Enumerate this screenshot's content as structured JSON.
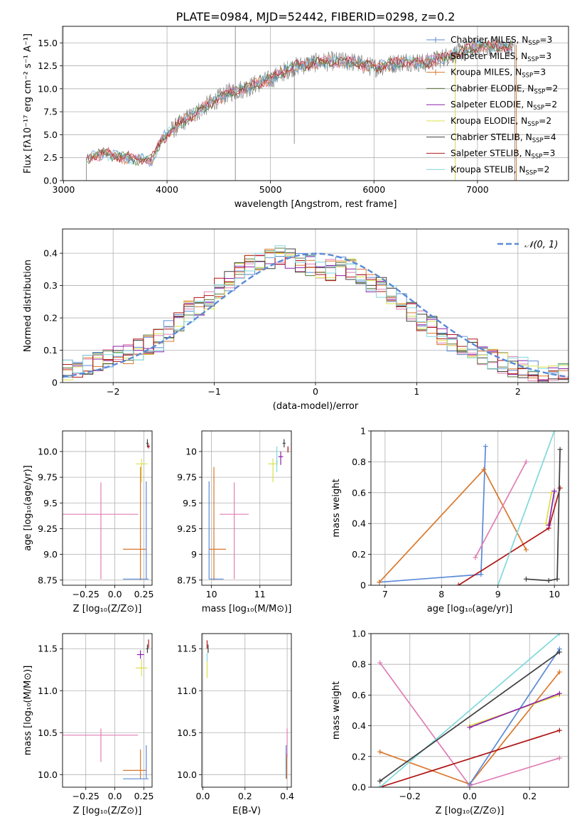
{
  "figure_title": "PLATE=0984, MJD=52442, FIBERID=0298, z=0.2",
  "colors": {
    "cm": "#5b8ad6",
    "sm": "#e07eb4",
    "km": "#d9782d",
    "ce": "#5d7a3d",
    "se": "#8c1fa8",
    "ke": "#dbe04a",
    "cs": "#3f3f3f",
    "ss": "#b01515",
    "ks": "#80d8dc",
    "grid": "#b0b0b0",
    "dash": "#5b8ad6"
  },
  "legend_order": [
    "cm",
    "sm",
    "km",
    "ce",
    "se",
    "ke",
    "cs",
    "ss",
    "ks"
  ],
  "chart_data": [
    {
      "id": "spectrum",
      "type": "line",
      "xlabel": "wavelength [Angstrom, rest frame]",
      "ylabel": "Flux [fλ10⁻¹⁷ erg cm⁻² s⁻¹ A⁻¹]",
      "xlim": [
        2990,
        7880
      ],
      "ylim": [
        0,
        16.8
      ],
      "xticks": [
        3000,
        4000,
        5000,
        6000,
        7000
      ],
      "yticks": [
        0.0,
        2.5,
        5.0,
        7.5,
        10.0,
        12.5,
        15.0
      ],
      "continuum": [
        [
          3220,
          2.4
        ],
        [
          3400,
          3.0
        ],
        [
          3500,
          2.7
        ],
        [
          3700,
          2.3
        ],
        [
          3850,
          2.2
        ],
        [
          3950,
          4.5
        ],
        [
          4050,
          5.5
        ],
        [
          4200,
          6.8
        ],
        [
          4400,
          8.3
        ],
        [
          4600,
          9.6
        ],
        [
          4800,
          10.2
        ],
        [
          4900,
          10.7
        ],
        [
          5000,
          11.0
        ],
        [
          5200,
          12.3
        ],
        [
          5400,
          12.8
        ],
        [
          5600,
          13.0
        ],
        [
          5800,
          12.9
        ],
        [
          6000,
          12.3
        ],
        [
          6300,
          13.0
        ],
        [
          6500,
          12.8
        ],
        [
          6700,
          13.5
        ],
        [
          7000,
          14.6
        ],
        [
          7200,
          14.6
        ],
        [
          7350,
          14.4
        ]
      ],
      "legend": [
        {
          "key": "cm",
          "label": "Chabrier MILES, N_SSP=3",
          "marker": true
        },
        {
          "key": "sm",
          "label": "Salpeter MILES, N_SSP=3",
          "marker": true
        },
        {
          "key": "km",
          "label": "Kroupa MILES, N_SSP=3",
          "marker": true
        },
        {
          "key": "ce",
          "label": "Chabrier ELODIE, N_SSP=2",
          "marker": false
        },
        {
          "key": "se",
          "label": "Salpeter ELODIE, N_SSP=2",
          "marker": false
        },
        {
          "key": "ke",
          "label": "Kroupa ELODIE, N_SSP=2",
          "marker": false
        },
        {
          "key": "cs",
          "label": "Chabrier STELIB, N_SSP=4",
          "marker": false
        },
        {
          "key": "ss",
          "label": "Salpeter STELIB, N_SSP=3",
          "marker": false
        },
        {
          "key": "ks",
          "label": "Kroupa STELIB, N_SSP=2",
          "marker": false
        }
      ]
    },
    {
      "id": "histogram",
      "type": "histogram",
      "xlabel": "(data-model)/error",
      "ylabel": "Normed distribution",
      "xlim": [
        -2.5,
        2.5
      ],
      "ylim": [
        0,
        0.475
      ],
      "xticks": [
        -2,
        -1,
        0,
        1,
        2
      ],
      "yticks": [
        0.0,
        0.1,
        0.2,
        0.3,
        0.4
      ],
      "bins": 50,
      "base_values": [
        0.04,
        0.05,
        0.05,
        0.06,
        0.07,
        0.08,
        0.09,
        0.1,
        0.12,
        0.13,
        0.16,
        0.19,
        0.22,
        0.24,
        0.26,
        0.29,
        0.31,
        0.34,
        0.36,
        0.37,
        0.38,
        0.39,
        0.38,
        0.37,
        0.36,
        0.35,
        0.35,
        0.36,
        0.35,
        0.33,
        0.31,
        0.29,
        0.27,
        0.25,
        0.22,
        0.19,
        0.17,
        0.15,
        0.13,
        0.11,
        0.1,
        0.08,
        0.07,
        0.06,
        0.05,
        0.05,
        0.04,
        0.03,
        0.03,
        0.03
      ],
      "legend_label": "𝒩(0, 1)"
    },
    {
      "id": "age_vs_Z",
      "type": "errorbar",
      "xlabel": "Z [log₁₀(Z/Z⊙)]",
      "ylabel": "age  [log₁₀(age/yr)]",
      "xlim": [
        -0.45,
        0.32
      ],
      "ylim": [
        8.7,
        10.2
      ],
      "xticks": [
        -0.25,
        0.0,
        0.25
      ],
      "yticks": [
        8.75,
        9.0,
        9.25,
        9.5,
        9.75,
        10.0
      ],
      "points": [
        {
          "key": "sm",
          "x": -0.12,
          "y": 9.39,
          "xerr": [
            0.33,
            0.32
          ],
          "yerr": [
            0.63,
            0.31
          ]
        },
        {
          "key": "km",
          "x": 0.22,
          "y": 9.05,
          "xerr": [
            0.15,
            0.05
          ],
          "yerr": [
            0.3,
            0.8
          ]
        },
        {
          "key": "cm",
          "x": 0.27,
          "y": 8.76,
          "xerr": [
            0.2,
            0.02
          ],
          "yerr": [
            0.0,
            0.95
          ]
        },
        {
          "key": "ke",
          "x": 0.23,
          "y": 9.88,
          "xerr": [
            0.05,
            0.05
          ],
          "yerr": [
            0.18,
            0.05
          ]
        },
        {
          "key": "cs",
          "x": 0.28,
          "y": 10.08,
          "xerr": [
            0.01,
            0.01
          ],
          "yerr": [
            0.04,
            0.04
          ]
        },
        {
          "key": "ss",
          "x": 0.29,
          "y": 10.05,
          "xerr": [
            0.01,
            0.01
          ],
          "yerr": [
            0.02,
            0.02
          ]
        }
      ]
    },
    {
      "id": "age_vs_mass",
      "type": "errorbar",
      "xlabel": "mass [log₁₀(M/M⊙)]",
      "ylabel": "",
      "xlim": [
        9.8,
        11.65
      ],
      "ylim": [
        8.7,
        10.2
      ],
      "xticks": [
        10,
        11
      ],
      "yticks": [
        8.75,
        9.0,
        9.25,
        9.5,
        9.75,
        10.0
      ],
      "points": [
        {
          "key": "sm",
          "x": 10.47,
          "y": 9.39,
          "xerr": [
            0.3,
            0.3
          ],
          "yerr": [
            0.63,
            0.31
          ]
        },
        {
          "key": "km",
          "x": 10.05,
          "y": 9.05,
          "xerr": [
            0.1,
            0.25
          ],
          "yerr": [
            0.3,
            0.8
          ]
        },
        {
          "key": "cm",
          "x": 9.95,
          "y": 8.76,
          "xerr": [
            0.0,
            0.3
          ],
          "yerr": [
            0.0,
            0.95
          ]
        },
        {
          "key": "ke",
          "x": 11.27,
          "y": 9.88,
          "xerr": [
            0.1,
            0.1
          ],
          "yerr": [
            0.18,
            0.05
          ]
        },
        {
          "key": "se",
          "x": 11.43,
          "y": 9.95,
          "xerr": [
            0.05,
            0.05
          ],
          "yerr": [
            0.08,
            0.05
          ]
        },
        {
          "key": "ks",
          "x": 11.35,
          "y": 9.9,
          "xerr": [
            0.02,
            0.02
          ],
          "yerr": [
            0.1,
            0.15
          ]
        },
        {
          "key": "cs",
          "x": 11.5,
          "y": 10.08,
          "xerr": [
            0.03,
            0.03
          ],
          "yerr": [
            0.04,
            0.04
          ]
        },
        {
          "key": "ss",
          "x": 11.58,
          "y": 10.02,
          "xerr": [
            0.01,
            0.01
          ],
          "yerr": [
            0.03,
            0.03
          ]
        }
      ]
    },
    {
      "id": "weight_vs_age",
      "type": "line",
      "xlabel": "age  [log₁₀(age/yr)]",
      "ylabel": "mass weight",
      "xlim": [
        6.75,
        10.25
      ],
      "ylim": [
        0,
        1.0
      ],
      "xticks": [
        7,
        8,
        9,
        10
      ],
      "yticks": [
        0.0,
        0.2,
        0.4,
        0.6,
        0.8,
        1.0
      ],
      "series": [
        {
          "key": "cm",
          "points": [
            [
              6.9,
              0.02
            ],
            [
              8.7,
              0.07
            ],
            [
              8.78,
              0.9
            ]
          ]
        },
        {
          "key": "km",
          "points": [
            [
              6.9,
              0.02
            ],
            [
              8.75,
              0.75
            ],
            [
              9.5,
              0.23
            ]
          ]
        },
        {
          "key": "sm",
          "points": [
            [
              8.6,
              0.18
            ],
            [
              9.5,
              0.8
            ]
          ]
        },
        {
          "key": "ss",
          "points": [
            [
              8.3,
              0.0
            ],
            [
              9.9,
              0.37
            ],
            [
              10.1,
              0.63
            ]
          ]
        },
        {
          "key": "ks",
          "points": [
            [
              9.0,
              0.0
            ],
            [
              10.0,
              1.0
            ]
          ]
        },
        {
          "key": "cs",
          "points": [
            [
              9.5,
              0.04
            ],
            [
              9.9,
              0.03
            ],
            [
              10.05,
              0.04
            ],
            [
              10.1,
              0.88
            ]
          ]
        },
        {
          "key": "ke",
          "points": [
            [
              9.85,
              0.4
            ],
            [
              9.95,
              0.6
            ]
          ]
        },
        {
          "key": "se",
          "points": [
            [
              9.9,
              0.39
            ],
            [
              10.0,
              0.61
            ]
          ]
        }
      ]
    },
    {
      "id": "mass_vs_Z",
      "type": "errorbar",
      "xlabel": "Z [log₁₀(Z/Z⊙)]",
      "ylabel": "mass [log₁₀(M/M⊙)]",
      "xlim": [
        -0.45,
        0.32
      ],
      "ylim": [
        9.85,
        11.68
      ],
      "xticks": [
        -0.25,
        0.0,
        0.25
      ],
      "yticks": [
        10.0,
        10.5,
        11.0,
        11.5
      ],
      "points": [
        {
          "key": "sm",
          "x": -0.12,
          "y": 10.47,
          "xerr": [
            0.33,
            0.32
          ],
          "yerr": [
            0.32,
            0.08
          ]
        },
        {
          "key": "km",
          "x": 0.22,
          "y": 10.05,
          "xerr": [
            0.15,
            0.05
          ],
          "yerr": [
            0.1,
            0.25
          ]
        },
        {
          "key": "cm",
          "x": 0.27,
          "y": 9.95,
          "xerr": [
            0.2,
            0.02
          ],
          "yerr": [
            0.0,
            0.4
          ]
        },
        {
          "key": "ke",
          "x": 0.23,
          "y": 11.27,
          "xerr": [
            0.05,
            0.05
          ],
          "yerr": [
            0.1,
            0.1
          ]
        },
        {
          "key": "se",
          "x": 0.22,
          "y": 11.43,
          "xerr": [
            0.03,
            0.03
          ],
          "yerr": [
            0.05,
            0.05
          ]
        },
        {
          "key": "cs",
          "x": 0.28,
          "y": 11.5,
          "xerr": [
            0.01,
            0.01
          ],
          "yerr": [
            0.05,
            0.05
          ]
        },
        {
          "key": "ss",
          "x": 0.29,
          "y": 11.56,
          "xerr": [
            0.0,
            0.0
          ],
          "yerr": [
            0.05,
            0.05
          ]
        }
      ]
    },
    {
      "id": "mass_vs_ebv",
      "type": "errorbar",
      "xlabel": "E(B-V)",
      "ylabel": "",
      "xlim": [
        -0.005,
        0.42
      ],
      "ylim": [
        9.85,
        11.68
      ],
      "xticks": [
        0.0,
        0.2,
        0.4
      ],
      "yticks": [
        10.0,
        10.5,
        11.0,
        11.5
      ],
      "points": [
        {
          "key": "ke",
          "x": 0.02,
          "y": 11.25,
          "xerr": [
            0,
            0
          ],
          "yerr": [
            0.1,
            0.1
          ]
        },
        {
          "key": "ks",
          "x": 0.02,
          "y": 11.4,
          "xerr": [
            0,
            0
          ],
          "yerr": [
            0.05,
            0.05
          ]
        },
        {
          "key": "cs",
          "x": 0.025,
          "y": 11.5,
          "xerr": [
            0,
            0
          ],
          "yerr": [
            0.05,
            0.05
          ]
        },
        {
          "key": "ss",
          "x": 0.02,
          "y": 11.55,
          "xerr": [
            0,
            0
          ],
          "yerr": [
            0.05,
            0.05
          ]
        },
        {
          "key": "cm",
          "x": 0.395,
          "y": 10.1,
          "xerr": [
            0,
            0
          ],
          "yerr": [
            0.15,
            0.25
          ]
        },
        {
          "key": "km",
          "x": 0.398,
          "y": 10.05,
          "xerr": [
            0,
            0
          ],
          "yerr": [
            0.1,
            0.2
          ]
        },
        {
          "key": "sm",
          "x": 0.4,
          "y": 10.4,
          "xerr": [
            0,
            0
          ],
          "yerr": [
            0.2,
            0.15
          ]
        }
      ]
    },
    {
      "id": "weight_vs_Z",
      "type": "line",
      "xlabel": "Z [log₁₀(Z/Z⊙)]",
      "ylabel": "mass weight",
      "xlim": [
        -0.33,
        0.33
      ],
      "ylim": [
        0,
        1.0
      ],
      "xticks": [
        -0.2,
        0.0,
        0.2
      ],
      "yticks": [
        0.0,
        0.2,
        0.4,
        0.6,
        0.8,
        1.0
      ],
      "series": [
        {
          "key": "sm",
          "points": [
            [
              -0.3,
              0.81
            ],
            [
              0.0,
              0.01
            ],
            [
              0.3,
              0.19
            ]
          ]
        },
        {
          "key": "km",
          "points": [
            [
              -0.3,
              0.23
            ],
            [
              0.0,
              0.02
            ],
            [
              0.3,
              0.75
            ]
          ]
        },
        {
          "key": "cm",
          "points": [
            [
              0.0,
              0.02
            ],
            [
              0.3,
              0.9
            ]
          ]
        },
        {
          "key": "ss",
          "points": [
            [
              -0.3,
              0.0
            ],
            [
              0.3,
              0.37
            ]
          ]
        },
        {
          "key": "ks",
          "points": [
            [
              -0.3,
              0.0
            ],
            [
              0.3,
              1.0
            ]
          ]
        },
        {
          "key": "cs",
          "points": [
            [
              -0.3,
              0.04
            ],
            [
              0.3,
              0.88
            ]
          ]
        },
        {
          "key": "ke",
          "points": [
            [
              0.0,
              0.4
            ],
            [
              0.3,
              0.6
            ]
          ]
        },
        {
          "key": "se",
          "points": [
            [
              0.0,
              0.39
            ],
            [
              0.3,
              0.61
            ]
          ]
        }
      ]
    }
  ]
}
